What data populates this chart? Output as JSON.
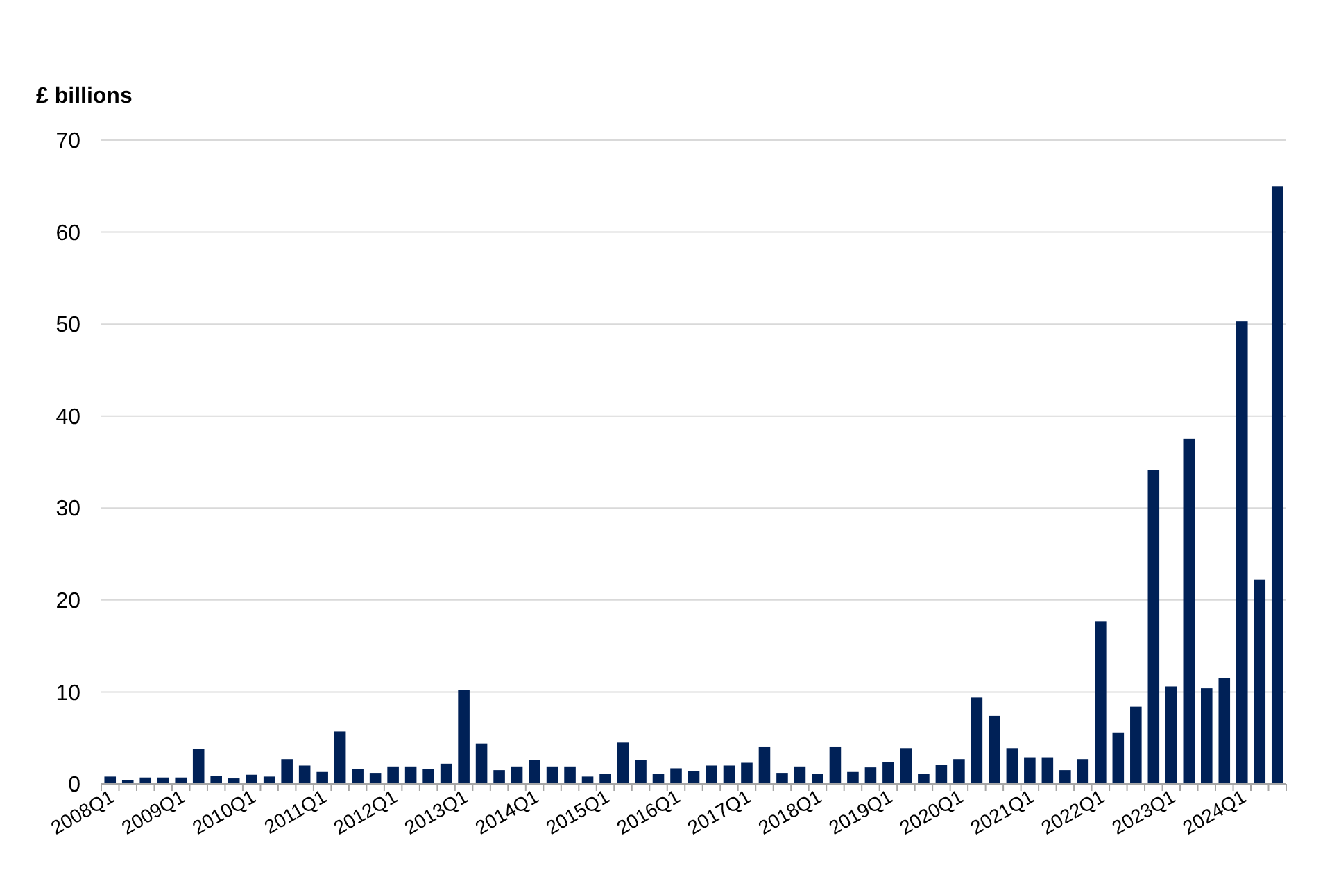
{
  "chart_data": {
    "type": "bar",
    "ylabel": "£ billions",
    "categories": [
      "2008Q1",
      null,
      null,
      null,
      "2009Q1",
      null,
      null,
      null,
      "2010Q1",
      null,
      null,
      null,
      "2011Q1",
      null,
      null,
      null,
      "2012Q1",
      null,
      null,
      null,
      "2013Q1",
      null,
      null,
      null,
      "2014Q1",
      null,
      null,
      null,
      "2015Q1",
      null,
      null,
      null,
      "2016Q1",
      null,
      null,
      null,
      "2017Q1",
      null,
      null,
      null,
      "2018Q1",
      null,
      null,
      null,
      "2019Q1",
      null,
      null,
      null,
      "2020Q1",
      null,
      null,
      null,
      "2021Q1",
      null,
      null,
      null,
      "2022Q1",
      null,
      null,
      null,
      "2023Q1",
      null,
      null,
      null,
      "2024Q1",
      null,
      null
    ],
    "values": [
      0.8,
      0.4,
      0.7,
      0.7,
      0.7,
      3.8,
      0.9,
      0.6,
      1.0,
      0.8,
      2.7,
      2.0,
      1.3,
      5.7,
      1.6,
      1.2,
      1.9,
      1.9,
      1.6,
      2.2,
      10.2,
      4.4,
      1.5,
      1.9,
      2.6,
      1.9,
      1.9,
      0.8,
      1.1,
      4.5,
      2.6,
      1.1,
      1.7,
      1.4,
      2.0,
      2.0,
      2.3,
      4.0,
      1.2,
      1.9,
      1.1,
      4.0,
      1.3,
      1.8,
      2.4,
      3.9,
      1.1,
      2.1,
      2.7,
      9.4,
      7.4,
      3.9,
      2.9,
      2.9,
      1.5,
      2.7,
      17.7,
      5.6,
      8.4,
      34.1,
      10.6,
      37.5,
      10.4,
      11.5,
      50.3,
      22.2,
      65.0
    ],
    "color": "#002157",
    "ylim": [
      0,
      70
    ],
    "yticks": [
      0,
      10,
      20,
      30,
      40,
      50,
      60,
      70
    ],
    "grid": "y"
  }
}
